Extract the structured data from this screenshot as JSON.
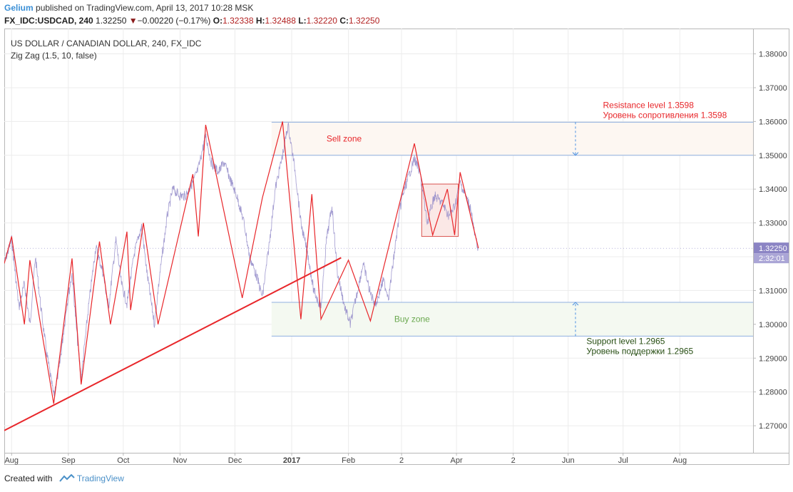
{
  "header": {
    "author": "Gelium",
    "published_text": " published on TradingView.com, April 13, 2017 10:28 MSK",
    "symbol": "FX_IDC:USDCAD, 240",
    "last": "1.32250",
    "change_arrow": "▼",
    "change": "−0.00220 (−0.17%)",
    "o_label": "O:",
    "o_value": "1.32338",
    "h_label": "H:",
    "h_value": "1.32488",
    "l_label": "L:",
    "l_value": "1.32220",
    "c_label": "C:",
    "c_value": "1.32250"
  },
  "footer": {
    "created_with": "Created with",
    "brand": "TradingView"
  },
  "chart_data": {
    "type": "line",
    "title": "US DOLLAR / CANADIAN DOLLAR, 240, FX_IDC",
    "indicator": "Zig Zag (1.5, 10, false)",
    "ylim": [
      1.262,
      1.3875
    ],
    "y_ticks": [
      "1.38000",
      "1.37000",
      "1.36000",
      "1.35000",
      "1.34000",
      "1.33000",
      "1.32000",
      "1.31000",
      "1.30000",
      "1.29000",
      "1.28000",
      "1.27000"
    ],
    "y_tick_values": [
      1.38,
      1.37,
      1.36,
      1.35,
      1.34,
      1.33,
      1.32,
      1.31,
      1.3,
      1.29,
      1.28,
      1.27
    ],
    "x_range": [
      "2016-07-28",
      "2017-09-10"
    ],
    "x_ticks": [
      {
        "label": "Aug",
        "date": "2016-08-01",
        "bold": false
      },
      {
        "label": "Sep",
        "date": "2016-09-01",
        "bold": false
      },
      {
        "label": "Oct",
        "date": "2016-10-01",
        "bold": false
      },
      {
        "label": "Nov",
        "date": "2016-11-01",
        "bold": false
      },
      {
        "label": "Dec",
        "date": "2016-12-01",
        "bold": false
      },
      {
        "label": "2017",
        "date": "2017-01-01",
        "bold": true
      },
      {
        "label": "Feb",
        "date": "2017-02-01",
        "bold": false
      },
      {
        "label": "2",
        "date": "2017-03-02",
        "bold": false
      },
      {
        "label": "Apr",
        "date": "2017-04-01",
        "bold": false
      },
      {
        "label": "2",
        "date": "2017-05-02",
        "bold": false
      },
      {
        "label": "Jun",
        "date": "2017-06-01",
        "bold": false
      },
      {
        "label": "Jul",
        "date": "2017-07-01",
        "bold": false
      },
      {
        "label": "Aug",
        "date": "2017-08-01",
        "bold": false
      }
    ],
    "price_series": {
      "name": "USDCAD",
      "color": "#9088c8",
      "points": [
        [
          "2016-07-28",
          1.318
        ],
        [
          "2016-08-01",
          1.325
        ],
        [
          "2016-08-05",
          1.305
        ],
        [
          "2016-08-08",
          1.312
        ],
        [
          "2016-08-11",
          1.3
        ],
        [
          "2016-08-14",
          1.32
        ],
        [
          "2016-08-17",
          1.305
        ],
        [
          "2016-08-20",
          1.292
        ],
        [
          "2016-08-24",
          1.279
        ],
        [
          "2016-08-27",
          1.287
        ],
        [
          "2016-08-31",
          1.305
        ],
        [
          "2016-09-03",
          1.315
        ],
        [
          "2016-09-06",
          1.295
        ],
        [
          "2016-09-08",
          1.284
        ],
        [
          "2016-09-12",
          1.305
        ],
        [
          "2016-09-16",
          1.323
        ],
        [
          "2016-09-20",
          1.315
        ],
        [
          "2016-09-23",
          1.305
        ],
        [
          "2016-09-27",
          1.325
        ],
        [
          "2016-09-30",
          1.312
        ],
        [
          "2016-10-03",
          1.306
        ],
        [
          "2016-10-07",
          1.321
        ],
        [
          "2016-10-11",
          1.329
        ],
        [
          "2016-10-14",
          1.315
        ],
        [
          "2016-10-18",
          1.3
        ],
        [
          "2016-10-21",
          1.315
        ],
        [
          "2016-10-25",
          1.332
        ],
        [
          "2016-10-28",
          1.34
        ],
        [
          "2016-11-01",
          1.338
        ],
        [
          "2016-11-04",
          1.338
        ],
        [
          "2016-11-08",
          1.342
        ],
        [
          "2016-11-11",
          1.346
        ],
        [
          "2016-11-15",
          1.356
        ],
        [
          "2016-11-18",
          1.348
        ],
        [
          "2016-11-22",
          1.345
        ],
        [
          "2016-11-25",
          1.348
        ],
        [
          "2016-11-29",
          1.342
        ],
        [
          "2016-12-02",
          1.338
        ],
        [
          "2016-12-06",
          1.33
        ],
        [
          "2016-12-09",
          1.32
        ],
        [
          "2016-12-13",
          1.314
        ],
        [
          "2016-12-16",
          1.308
        ],
        [
          "2016-12-20",
          1.325
        ],
        [
          "2016-12-23",
          1.34
        ],
        [
          "2016-12-27",
          1.35
        ],
        [
          "2016-12-30",
          1.359
        ],
        [
          "2017-01-03",
          1.345
        ],
        [
          "2017-01-06",
          1.33
        ],
        [
          "2017-01-10",
          1.32
        ],
        [
          "2017-01-13",
          1.31
        ],
        [
          "2017-01-17",
          1.305
        ],
        [
          "2017-01-20",
          1.325
        ],
        [
          "2017-01-23",
          1.335
        ],
        [
          "2017-01-26",
          1.315
        ],
        [
          "2017-01-30",
          1.305
        ],
        [
          "2017-02-02",
          1.3
        ],
        [
          "2017-02-06",
          1.31
        ],
        [
          "2017-02-09",
          1.318
        ],
        [
          "2017-02-13",
          1.309
        ],
        [
          "2017-02-16",
          1.306
        ],
        [
          "2017-02-20",
          1.313
        ],
        [
          "2017-02-23",
          1.308
        ],
        [
          "2017-02-27",
          1.325
        ],
        [
          "2017-03-02",
          1.337
        ],
        [
          "2017-03-06",
          1.344
        ],
        [
          "2017-03-09",
          1.349
        ],
        [
          "2017-03-12",
          1.345
        ],
        [
          "2017-03-16",
          1.33
        ],
        [
          "2017-03-20",
          1.338
        ],
        [
          "2017-03-24",
          1.336
        ],
        [
          "2017-03-28",
          1.332
        ],
        [
          "2017-03-31",
          1.335
        ],
        [
          "2017-04-03",
          1.342
        ],
        [
          "2017-04-06",
          1.338
        ],
        [
          "2017-04-09",
          1.334
        ],
        [
          "2017-04-11",
          1.326
        ],
        [
          "2017-04-13",
          1.3225
        ]
      ]
    },
    "zigzag": {
      "name": "Zig Zag (1.5, 10, false)",
      "color": "#e8262a",
      "points": [
        [
          "2016-07-28",
          1.318
        ],
        [
          "2016-08-01",
          1.326
        ],
        [
          "2016-08-08",
          1.3
        ],
        [
          "2016-08-11",
          1.319
        ],
        [
          "2016-08-24",
          1.2765
        ],
        [
          "2016-09-03",
          1.3195
        ],
        [
          "2016-09-08",
          1.2822
        ],
        [
          "2016-09-18",
          1.3245
        ],
        [
          "2016-09-24",
          1.3
        ],
        [
          "2016-10-03",
          1.3274
        ],
        [
          "2016-10-05",
          1.3042
        ],
        [
          "2016-10-12",
          1.33
        ],
        [
          "2016-10-20",
          1.3
        ],
        [
          "2016-11-08",
          1.3444
        ],
        [
          "2016-11-11",
          1.326
        ],
        [
          "2016-11-15",
          1.359
        ],
        [
          "2016-12-05",
          1.3078
        ],
        [
          "2016-12-16",
          1.3375
        ],
        [
          "2016-12-27",
          1.36
        ],
        [
          "2017-01-06",
          1.3015
        ],
        [
          "2017-01-12",
          1.3385
        ],
        [
          "2017-01-17",
          1.3015
        ],
        [
          "2017-02-01",
          1.319
        ],
        [
          "2017-02-13",
          1.301
        ],
        [
          "2017-03-09",
          1.3535
        ],
        [
          "2017-03-19",
          1.3264
        ],
        [
          "2017-03-27",
          1.34
        ],
        [
          "2017-03-31",
          1.3264
        ],
        [
          "2017-04-03",
          1.345
        ],
        [
          "2017-04-13",
          1.3225
        ]
      ]
    },
    "trendline": {
      "color": "#e8262a",
      "from": [
        "2016-07-28",
        1.2686
      ],
      "to": [
        "2017-01-28",
        1.3197
      ]
    },
    "sell_zone": {
      "label": "Sell zone",
      "from": "2016-12-21",
      "to": "2017-09-10",
      "low": 1.35,
      "high": 1.3598,
      "fill": "#fdf7f2"
    },
    "buy_zone": {
      "label": "Buy zone",
      "from": "2016-12-21",
      "to": "2017-09-10",
      "low": 1.2965,
      "high": 1.3065,
      "fill": "#f4f9f1"
    },
    "range_box": {
      "from": "2017-03-13",
      "to": "2017-04-02",
      "low": 1.326,
      "high": 1.3415,
      "fill": "#fbe8e6",
      "stroke": "#d9534f"
    },
    "resistance_annotation": [
      "Resistance level 1.3598",
      "Уровень сопротивления 1.3598"
    ],
    "support_annotation": [
      "Support level 1.2965",
      "Уровень поддержки 1.2965"
    ],
    "annotation_line_color": "#4a90e2",
    "arrows": [
      {
        "date": "2017-06-05",
        "from": 1.3598,
        "to": 1.35
      },
      {
        "date": "2017-06-05",
        "from": 1.2965,
        "to": 1.3065
      }
    ],
    "last_price_label": "1.32250",
    "countdown_label": "2:32:01",
    "grid": true
  }
}
